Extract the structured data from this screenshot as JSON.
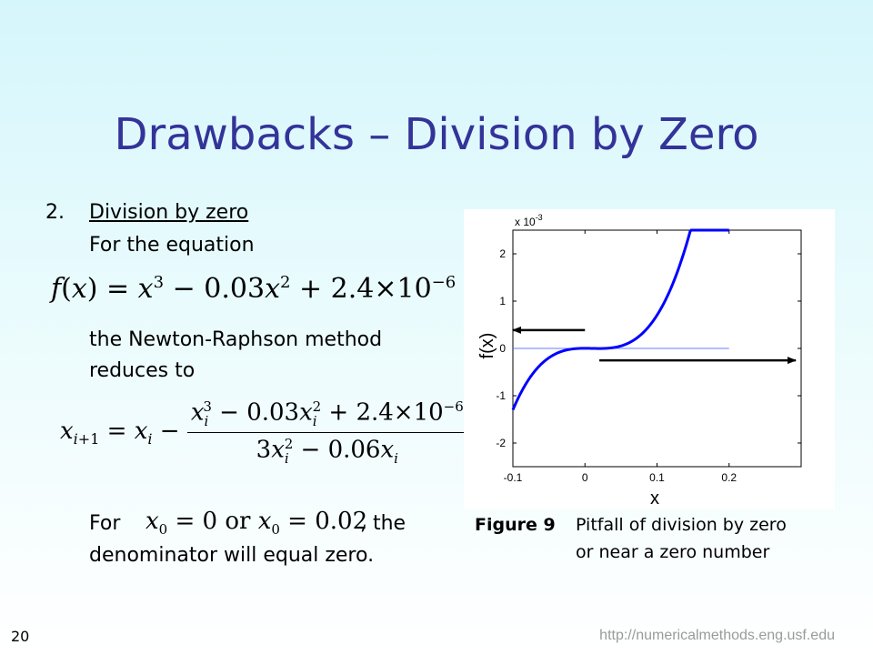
{
  "slide": {
    "title": "Drawbacks – Division by Zero",
    "list_number": "2.",
    "heading": "Division by zero",
    "line1": "For the equation",
    "line2": "the Newton-Raphson method",
    "line3": "reduces to",
    "for_word": "For",
    "comma_the": ", the",
    "line_last": "denominator will equal zero.",
    "slide_number": "20",
    "url": "http://numericalmethods.eng.usf.edu"
  },
  "figure": {
    "caption_label": "Figure 9",
    "caption_line1": "Pitfall of division by zero",
    "caption_line2": "or near a zero number"
  },
  "chart_data": {
    "type": "line",
    "function": "f(x) = x^3 - 0.03x^2 + 2.4e-6",
    "xlabel": "x",
    "ylabel": "f(x)",
    "y_scale_label": "x 10",
    "y_scale_exp": "-3",
    "xlim": [
      -0.1,
      0.3
    ],
    "ylim": [
      -0.0025,
      0.0025
    ],
    "x_ticks": [
      "-0.1",
      "0",
      "0.1",
      "0.2"
    ],
    "y_ticks": [
      "2",
      "1",
      "0",
      "-1",
      "-2"
    ],
    "x_tick_values": [
      -0.1,
      0,
      0.1,
      0.2
    ],
    "y_tick_values": [
      0.002,
      0.001,
      0,
      -0.001,
      -0.002
    ],
    "curve_x_range": [
      -0.1,
      0.2
    ],
    "zero_line": [
      -0.1,
      0.2
    ],
    "arrows": [
      {
        "from_x": 0,
        "from_y": 2.4e-06,
        "to_x": -0.1,
        "to_y": 2.4e-06
      },
      {
        "from_x": 0.02,
        "from_y": -1.6e-06,
        "to_x": 0.3,
        "to_y": -1.6e-06
      }
    ],
    "grid": false,
    "colors": {
      "curve": "#0000ff",
      "zero_line": "#6b7bff",
      "arrow": "#000000"
    }
  }
}
